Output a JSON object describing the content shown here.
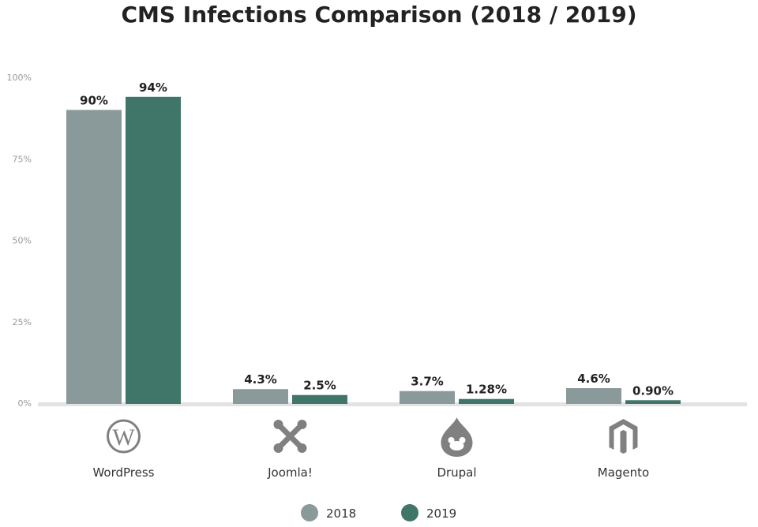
{
  "chart_data": {
    "type": "bar",
    "title": "CMS Infections Comparison (2018 / 2019)",
    "xlabel": "",
    "ylabel": "",
    "ylim": [
      0,
      100
    ],
    "yticks": [
      "0%",
      "25%",
      "50%",
      "75%",
      "100%"
    ],
    "ytick_values": [
      0,
      25,
      50,
      75,
      100
    ],
    "categories": [
      "WordPress",
      "Joomla!",
      "Drupal",
      "Magento"
    ],
    "category_icons": [
      "wordpress-icon",
      "joomla-icon",
      "drupal-icon",
      "magento-icon"
    ],
    "series": [
      {
        "name": "2018",
        "color": "#8a999a",
        "values": [
          90,
          4.3,
          3.7,
          4.6
        ],
        "labels": [
          "90%",
          "4.3%",
          "3.7%",
          "4.6%"
        ]
      },
      {
        "name": "2019",
        "color": "#40766a",
        "values": [
          94,
          2.5,
          1.28,
          0.9
        ],
        "labels": [
          "94%",
          "2.5%",
          "1.28%",
          "0.90%"
        ]
      }
    ],
    "grid": false,
    "legend": "bottom"
  }
}
